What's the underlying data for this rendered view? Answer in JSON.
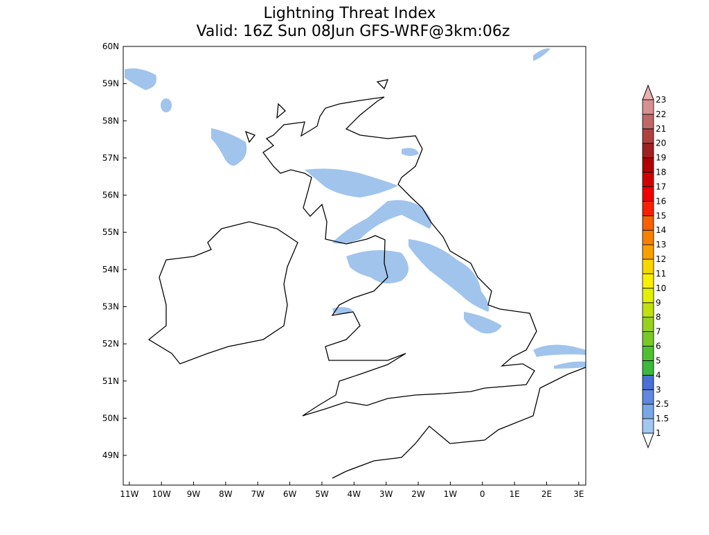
{
  "map": {
    "title": [
      "Lightning Threat Index",
      "Valid: 16Z Sun 08Jun GFS-WRF@3km:06z"
    ],
    "xlim": [
      -11.19,
      3.22
    ],
    "ylim": [
      48.2,
      60
    ],
    "xticks": [
      {
        "value": -11,
        "label": "11W"
      },
      {
        "value": -10,
        "label": "10W"
      },
      {
        "value": -9,
        "label": "9W"
      },
      {
        "value": -8,
        "label": "8W"
      },
      {
        "value": -7,
        "label": "7W"
      },
      {
        "value": -6,
        "label": "6W"
      },
      {
        "value": -5,
        "label": "5W"
      },
      {
        "value": -4,
        "label": "4W"
      },
      {
        "value": -3,
        "label": "3W"
      },
      {
        "value": -2,
        "label": "2W"
      },
      {
        "value": -1,
        "label": "1W"
      },
      0,
      {
        "value": 1,
        "label": "1E"
      },
      {
        "value": 2,
        "label": "2E"
      },
      {
        "value": 3,
        "label": "3E"
      }
    ],
    "yticks": [
      {
        "value": 49,
        "label": "49N"
      },
      {
        "value": 50,
        "label": "50N"
      },
      {
        "value": 51,
        "label": "51N"
      },
      {
        "value": 52,
        "label": "52N"
      },
      {
        "value": 53,
        "label": "53N"
      },
      {
        "value": 54,
        "label": "54N"
      },
      {
        "value": 55,
        "label": "55N"
      },
      {
        "value": 56,
        "label": "56N"
      },
      {
        "value": 57,
        "label": "57N"
      },
      {
        "value": 58,
        "label": "58N"
      },
      {
        "value": 59,
        "label": "59N"
      },
      {
        "value": 60,
        "label": "60N"
      }
    ],
    "colorbar": {
      "levels": [
        1,
        1.5,
        2.5,
        3,
        4,
        5,
        6,
        7,
        8,
        9,
        10,
        11,
        12,
        13,
        14,
        15,
        16,
        17,
        18,
        19,
        20,
        21,
        22,
        23
      ],
      "colors": [
        "#a0c8f0",
        "#78a8e8",
        "#6088e0",
        "#4a70d8",
        "#3cb83c",
        "#50c030",
        "#78c828",
        "#98d020",
        "#c0e010",
        "#e0f000",
        "#f8f000",
        "#f8d800",
        "#f8a000",
        "#f88000",
        "#f86000",
        "#f82000",
        "#f00000",
        "#d00000",
        "#b00000",
        "#a02020",
        "#b04040",
        "#c06868",
        "#d89090"
      ],
      "under_color": "#ffffff",
      "over_color": "#e8b0b0"
    }
  }
}
